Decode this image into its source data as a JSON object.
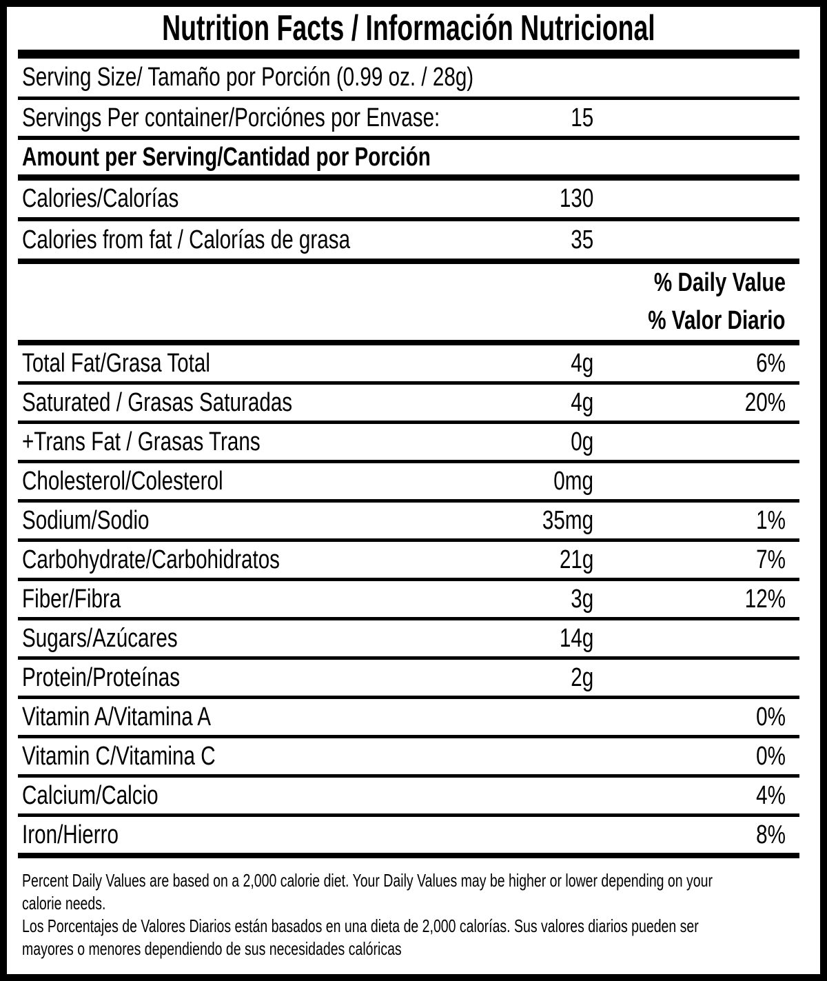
{
  "label": {
    "title": "Nutrition Facts / Información Nutricional",
    "serving_size": "Serving Size/ Tamaño por Porción  (0.99 oz. / 28g)",
    "servings_per_container": {
      "label": "Servings Per container/Porciónes por Envase:",
      "value": "15"
    },
    "amount_per_serving_header": "Amount per Serving/Cantidad por Porción",
    "calories": {
      "label": "Calories/Calorías",
      "value": "130"
    },
    "calories_from_fat": {
      "label": "Calories from fat / Calorías de grasa",
      "value": "35"
    },
    "daily_value_header_en": "% Daily Value",
    "daily_value_header_es": "% Valor Diario",
    "nutrients": [
      {
        "label": "Total Fat/Grasa Total",
        "amount": "4g",
        "dv": "6%"
      },
      {
        "label": "Saturated / Grasas Saturadas",
        "amount": "4g",
        "dv": "20%"
      },
      {
        "label": "+Trans Fat / Grasas Trans",
        "amount": "0g",
        "dv": ""
      },
      {
        "label": "Cholesterol/Colesterol",
        "amount": "0mg",
        "dv": ""
      },
      {
        "label": "Sodium/Sodio",
        "amount": "35mg",
        "dv": "1%"
      },
      {
        "label": "Carbohydrate/Carbohidratos",
        "amount": "21g",
        "dv": "7%"
      },
      {
        "label": "Fiber/Fibra",
        "amount": "3g",
        "dv": "12%"
      },
      {
        "label": "Sugars/Azúcares",
        "amount": "14g",
        "dv": ""
      },
      {
        "label": "Protein/Proteínas",
        "amount": "2g",
        "dv": ""
      },
      {
        "label": "Vitamin A/Vitamina A",
        "amount": "",
        "dv": "0%"
      },
      {
        "label": "Vitamin C/Vitamina C",
        "amount": "",
        "dv": "0%"
      },
      {
        "label": "Calcium/Calcio",
        "amount": "",
        "dv": "4%"
      },
      {
        "label": "Iron/Hierro",
        "amount": "",
        "dv": "8%"
      }
    ],
    "footnotes": {
      "en": [
        "Percent Daily Values are based on a 2,000 calorie diet. Your Daily Values may be higher or lower depending on your",
        "calorie needs."
      ],
      "es": [
        "Los Porcentajes de Valores Diarios están basados en una dieta de 2,000 calorías. Sus valores diarios pueden ser",
        "mayores o menores dependiendo de sus necesidades calóricas"
      ]
    },
    "colors": {
      "ink": "#000000",
      "background": "#ffffff"
    }
  }
}
